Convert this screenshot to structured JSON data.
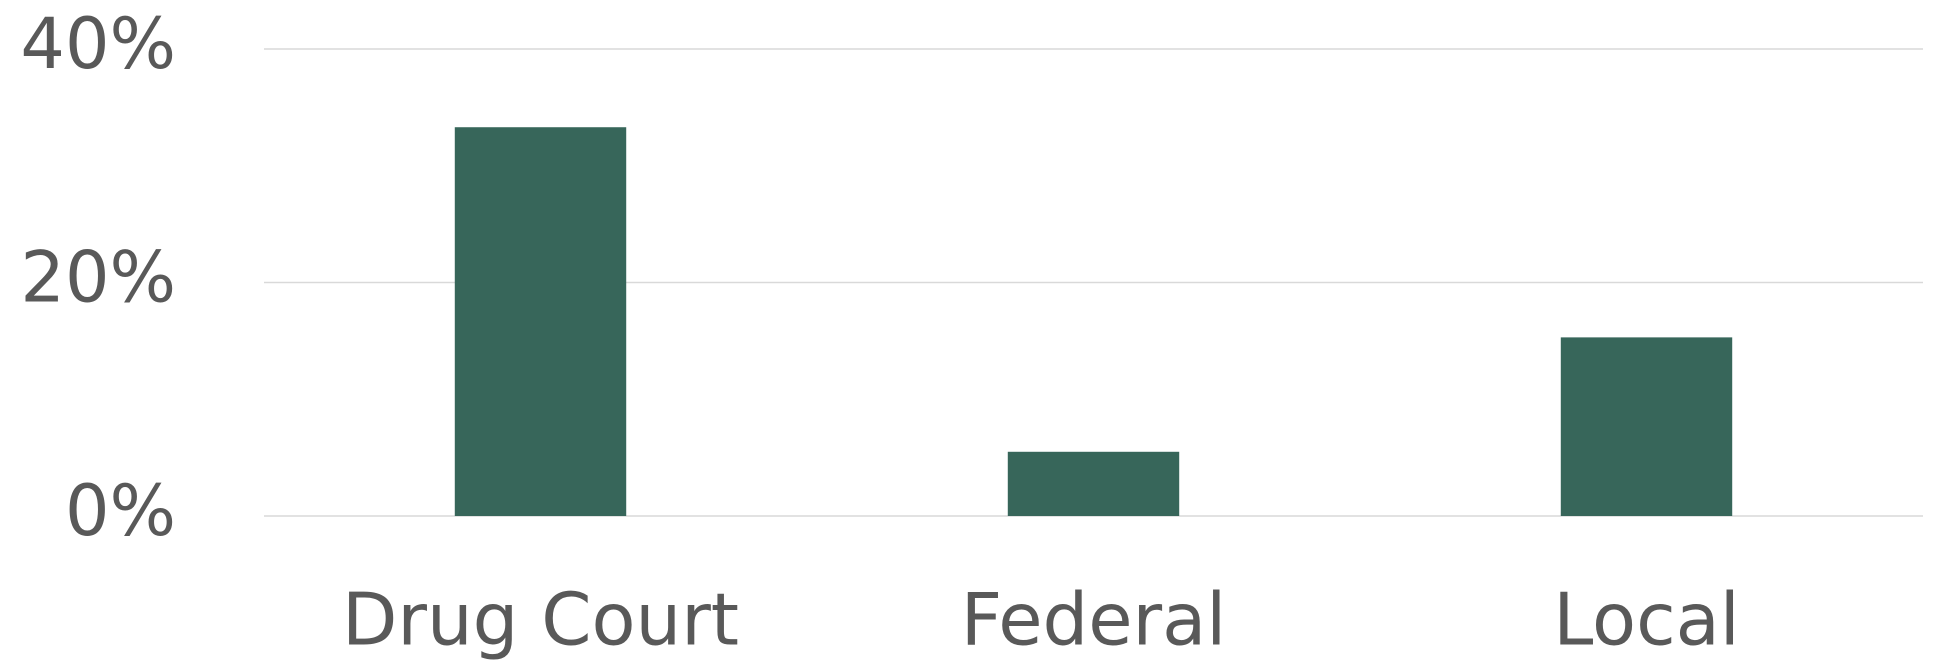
{
  "chart_data": {
    "type": "bar",
    "categories": [
      "Drug Court",
      "Federal",
      "Local"
    ],
    "values": [
      33.3,
      5.5,
      15.3
    ],
    "color": "#37665a",
    "ylim": [
      0,
      40
    ],
    "yticks": [
      {
        "value": 0,
        "label": "0%"
      },
      {
        "value": 20,
        "label": "20%"
      },
      {
        "value": 40,
        "label": "40%"
      }
    ],
    "grid": true
  }
}
